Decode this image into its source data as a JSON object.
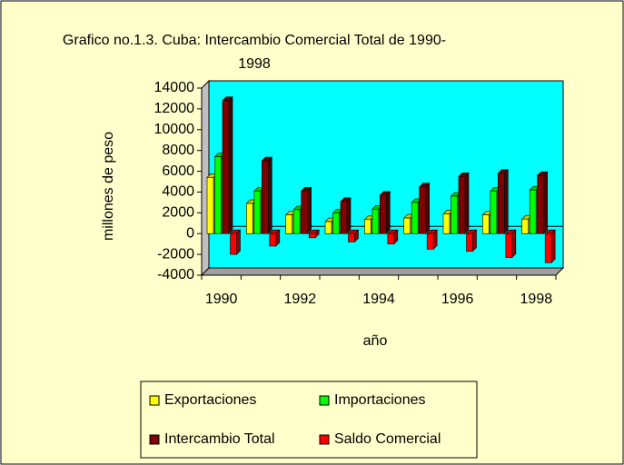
{
  "chart_data": {
    "type": "bar",
    "title": "Grafico no.1.3. Cuba: Intercambio Comercial Total de 1990-1998",
    "x_label": "año",
    "y_label": "millones de peso",
    "categories": [
      "1990",
      null,
      "1992",
      null,
      "1994",
      null,
      "1996",
      null,
      "1998"
    ],
    "series": [
      {
        "name": "Exportaciones",
        "color": "#ffff00",
        "values": [
          5400,
          2900,
          1800,
          1150,
          1350,
          1500,
          1900,
          1800,
          1400
        ]
      },
      {
        "name": "Importaciones",
        "color": "#00ff00",
        "values": [
          7400,
          4100,
          2300,
          2000,
          2350,
          3000,
          3600,
          4100,
          4200
        ]
      },
      {
        "name": "Intercambio Total",
        "color": "#800000",
        "values": [
          12800,
          7000,
          4100,
          3100,
          3700,
          4500,
          5500,
          5800,
          5600
        ]
      },
      {
        "name": "Saldo Comercial",
        "color": "#ff0000",
        "values": [
          -2000,
          -1200,
          -400,
          -800,
          -1000,
          -1500,
          -1700,
          -2300,
          -2800
        ]
      }
    ],
    "ylim": [
      -4000,
      14000
    ],
    "yticks": [
      -4000,
      -2000,
      0,
      2000,
      4000,
      6000,
      8000,
      10000,
      12000,
      14000
    ],
    "grid": false,
    "legend": "bottom"
  }
}
